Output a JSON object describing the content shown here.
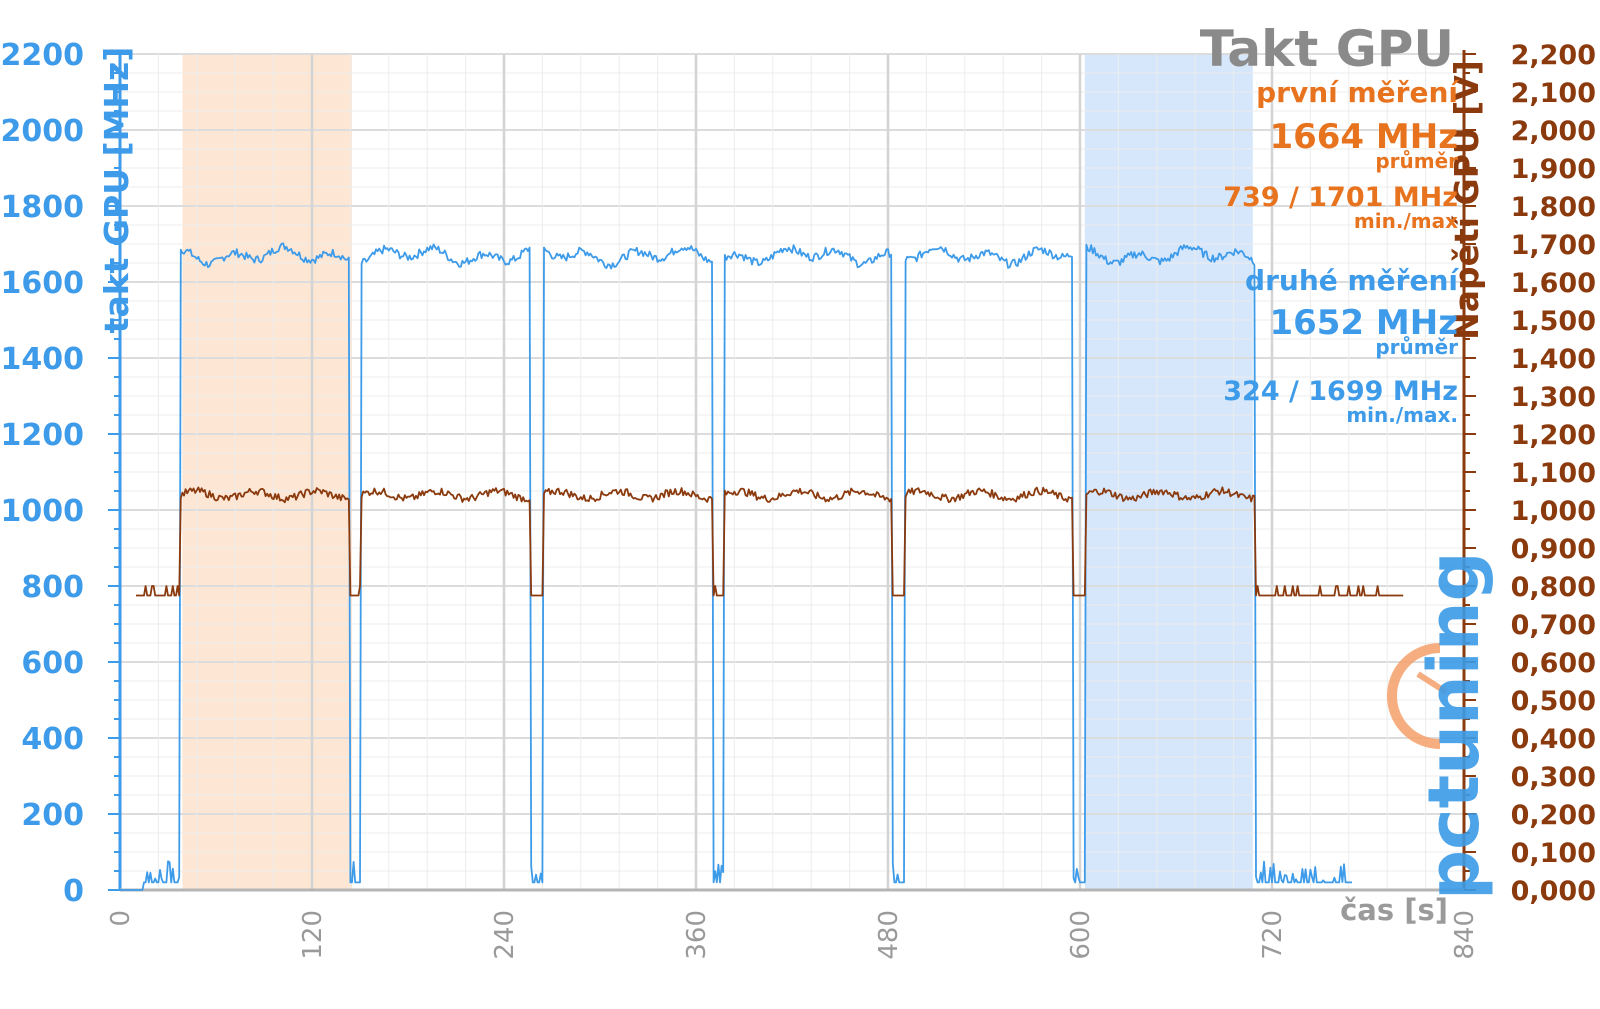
{
  "chart_data": {
    "type": "line",
    "title": "Takt GPU",
    "xlabel": "čas [s]",
    "ylabel_left": "takt GPU [MHz]",
    "ylabel_right": "Napětí GPU [V]",
    "x_ticks": [
      "0",
      "120",
      "240",
      "360",
      "480",
      "600",
      "720",
      "840"
    ],
    "y_left_ticks": [
      "0",
      "200",
      "400",
      "600",
      "800",
      "1000",
      "1200",
      "1400",
      "1600",
      "1800",
      "2000",
      "2200"
    ],
    "y_right_ticks": [
      "0,000",
      "0,100",
      "0,200",
      "0,300",
      "0,400",
      "0,500",
      "0,600",
      "0,700",
      "0,800",
      "0,900",
      "1,000",
      "1,100",
      "1,200",
      "1,300",
      "1,400",
      "1,500",
      "1,600",
      "1,700",
      "1,800",
      "1,900",
      "2,000",
      "2,100",
      "2,200"
    ],
    "xlim": [
      0,
      840
    ],
    "ylim_left": [
      0,
      2200
    ],
    "ylim_right": [
      0,
      2.2
    ],
    "grid": true,
    "highlight_regions": [
      {
        "name": "první měření",
        "x_start": 39,
        "x_end": 145,
        "color": "#fde3cc"
      },
      {
        "name": "druhé měření",
        "x_start": 603,
        "x_end": 708,
        "color": "#cfe3fb"
      }
    ],
    "load_segments": [
      [
        38,
        143
      ],
      [
        151,
        256
      ],
      [
        265,
        370
      ],
      [
        378,
        482
      ],
      [
        491,
        595
      ],
      [
        604,
        709
      ]
    ],
    "series": [
      {
        "name": "takt GPU [MHz]",
        "axis": "left",
        "color": "#3d9be9",
        "load_value": 1670,
        "idle_value": 20,
        "end_x": 770
      },
      {
        "name": "Napětí GPU [V]",
        "axis": "right",
        "color": "#8b3a0e",
        "load_value": 1.04,
        "idle_value": 0.775,
        "end_x": 802
      }
    ],
    "annotations": {
      "first": {
        "heading": "první měření",
        "avg": "1664 MHz",
        "avg_label": "průměr",
        "minmax": "739 / 1701 MHz",
        "minmax_label": "min./max"
      },
      "second": {
        "heading": "druhé měření",
        "avg": "1652 MHz",
        "avg_label": "průměr",
        "minmax": "324 / 1699 MHz",
        "minmax_label": "min./max."
      }
    },
    "logo_text": "pctuning",
    "colors": {
      "clock": "#3d9be9",
      "voltage": "#8b3a0e",
      "first": "#e8731e",
      "title": "#8a8a8a"
    }
  }
}
